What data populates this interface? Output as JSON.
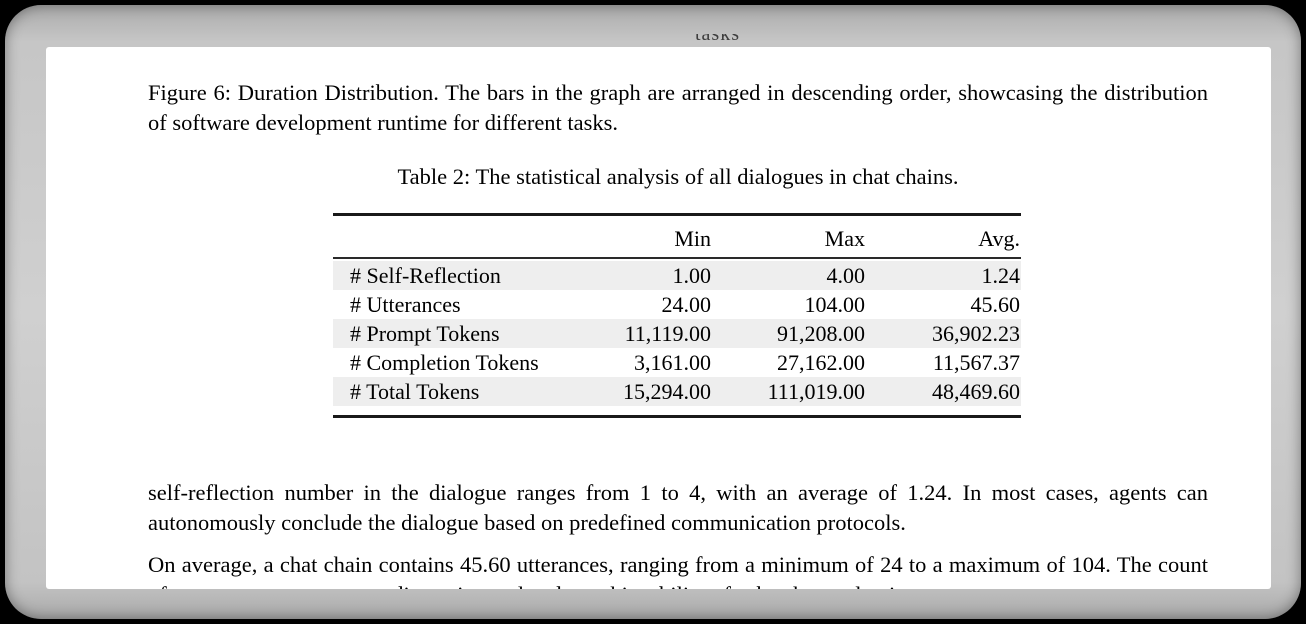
{
  "window": {
    "clipped_top_text": "tasks"
  },
  "figure_caption": "Figure 6: Duration Distribution. The bars in the graph are arranged in descending order, showcasing the distribution of software development runtime for different tasks.",
  "table": {
    "caption": "Table 2: The statistical analysis of all dialogues in chat chains.",
    "columns": [
      "Min",
      "Max",
      "Avg."
    ],
    "rows": [
      {
        "label": "# Self-Reflection",
        "min": "1.00",
        "max": "4.00",
        "avg": "1.24"
      },
      {
        "label": "# Utterances",
        "min": "24.00",
        "max": "104.00",
        "avg": "45.60"
      },
      {
        "label": "# Prompt Tokens",
        "min": "11,119.00",
        "max": "91,208.00",
        "avg": "36,902.23"
      },
      {
        "label": "# Completion Tokens",
        "min": "3,161.00",
        "max": "27,162.00",
        "avg": "11,567.37"
      },
      {
        "label": "# Total Tokens",
        "min": "15,294.00",
        "max": "111,019.00",
        "avg": "48,469.60"
      }
    ],
    "row_shading_color": "#eeeeee"
  },
  "paragraphs": {
    "p1": "self-reflection number in the dialogue ranges from 1 to 4, with an average of 1.24. In most cases, agents can autonomously conclude the dialogue based on predefined communication protocols.",
    "p2": "On average, a chat chain contains 45.60 utterances, ranging from a minimum of 24 to a maximum of 104. The count of utterances encompasses discussions related to achievability of subtasks, evaluations"
  }
}
